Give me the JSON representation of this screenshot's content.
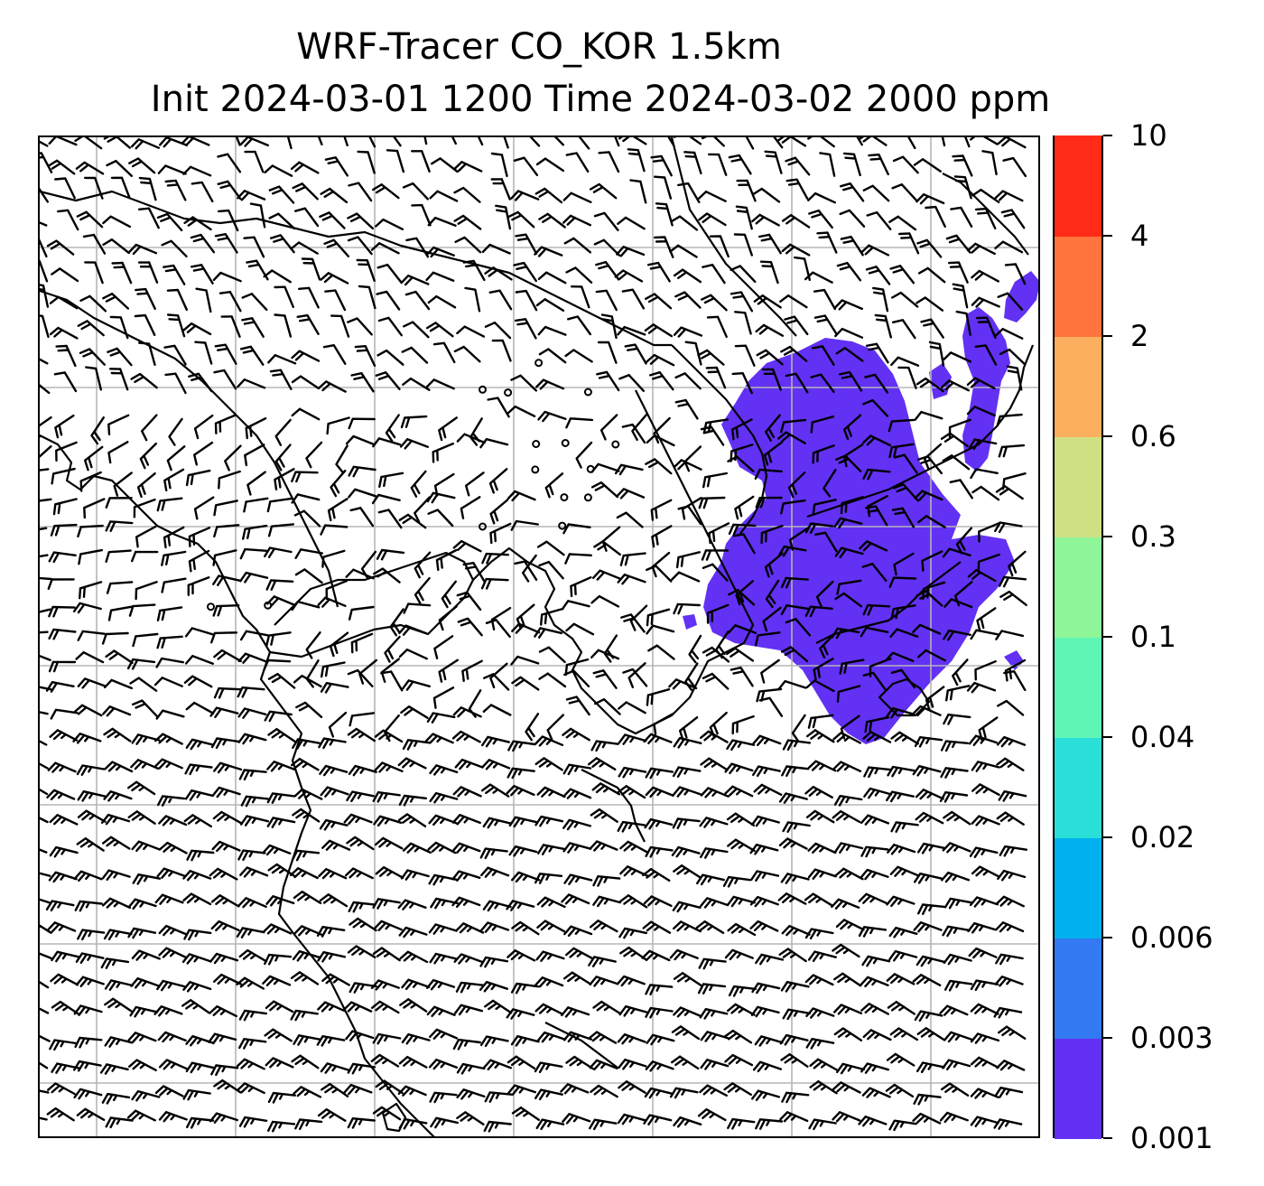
{
  "title": {
    "line1": "WRF-Tracer CO_KOR 1.5km",
    "line2": "Init 2024-03-01 1200 Time 2024-03-02 2000 ppm"
  },
  "map": {
    "variable": "CO_KOR tracer concentration",
    "overlay": "wind barbs",
    "gridlines": true,
    "plume_color": "#6231f4",
    "coastline_color": "#000000",
    "gridline_color": "#b5b5b5"
  },
  "colorbar": {
    "levels": [
      "0.001",
      "0.003",
      "0.006",
      "0.02",
      "0.04",
      "0.1",
      "0.3",
      "0.6",
      "2",
      "4",
      "10"
    ],
    "colors": [
      "#6231f4",
      "#3279f2",
      "#00b1ed",
      "#2adfd7",
      "#5ff5b4",
      "#8ef598",
      "#cfe084",
      "#fcaf5f",
      "#ff733d",
      "#ff2b18"
    ]
  }
}
